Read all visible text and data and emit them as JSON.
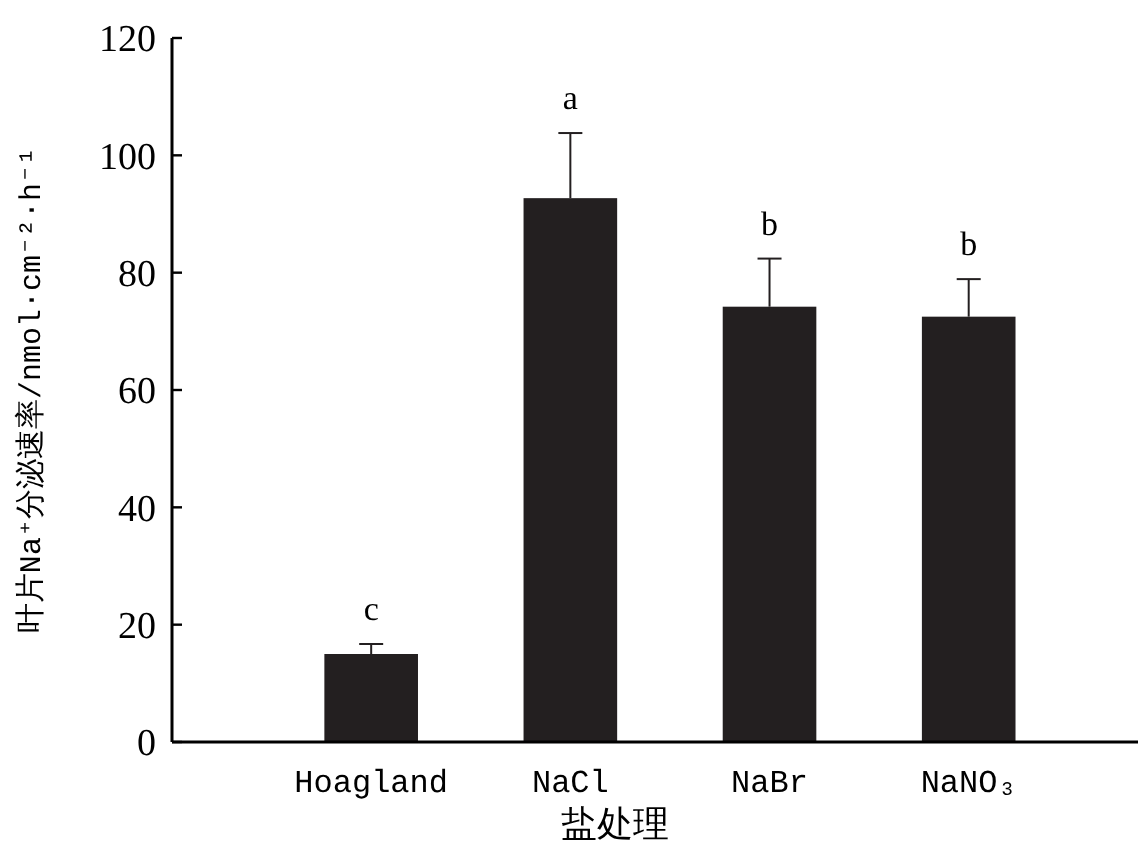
{
  "chart_data": {
    "type": "bar",
    "xlabel": "盐处理",
    "ylabel": "叶片Na⁺分泌速率/nmol·cm⁻²·h⁻¹",
    "categories": [
      "Hoagland",
      "NaCl",
      "NaBr",
      "NaNO₃"
    ],
    "values": [
      15.0,
      92.7,
      74.2,
      72.5
    ],
    "errors": [
      [
        15.0,
        16.7
      ],
      [
        92.7,
        103.8
      ],
      [
        74.2,
        82.4
      ],
      [
        72.5,
        78.9
      ]
    ],
    "color": "#231f20",
    "ylim": [
      0,
      120
    ],
    "yticks": [
      0,
      20,
      40,
      60,
      80,
      100,
      120
    ],
    "grid": false,
    "annotations": [
      {
        "text": "c",
        "x": "Hoagland",
        "y": 16.7
      },
      {
        "text": "a",
        "x": "NaCl",
        "y": 103.8
      },
      {
        "text": "b",
        "x": "NaBr",
        "y": 82.4
      },
      {
        "text": "b",
        "x": "NaNO₃",
        "y": 78.9
      }
    ]
  }
}
